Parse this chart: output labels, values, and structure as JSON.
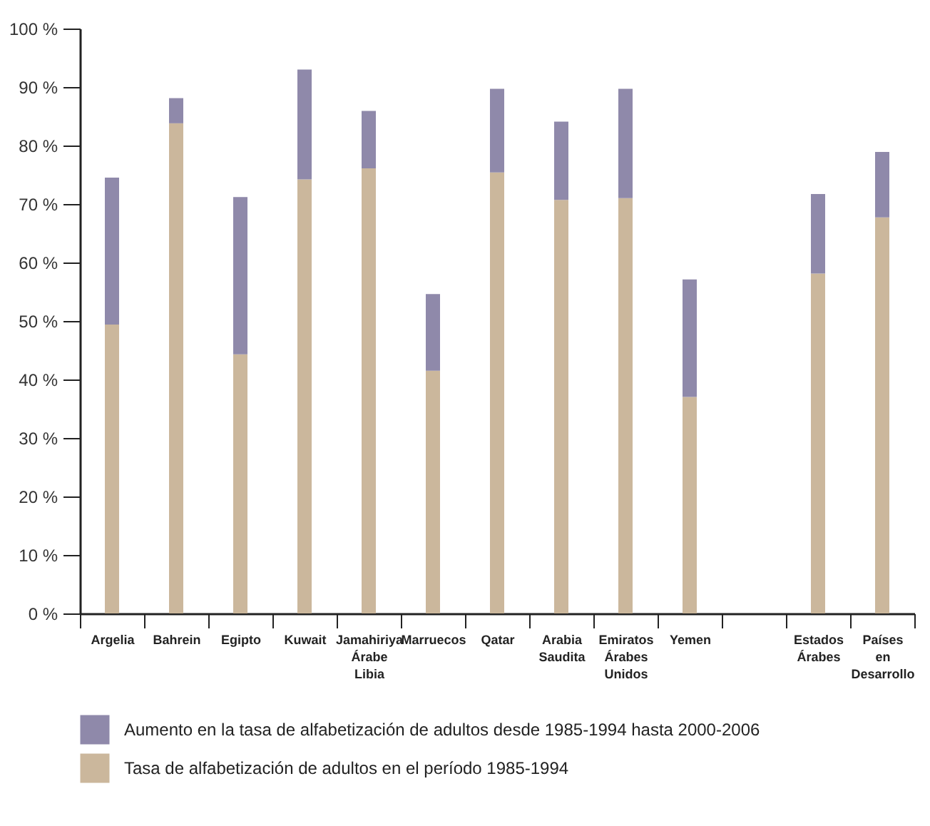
{
  "chart_data": {
    "type": "bar",
    "stacked": true,
    "categories": [
      "Argelia",
      "Bahrein",
      "Egipto",
      "Kuwait",
      "Jamahiriya Árabe Libia",
      "Marruecos",
      "Qatar",
      "Arabia Saudita",
      "Emiratos Árabes Unidos",
      "Yemen",
      null,
      "Estados Árabes",
      "Países en Desarrollo"
    ],
    "series": [
      {
        "name": "Tasa de alfabetización de adultos en el período 1985-1994",
        "color": "#cbb79c",
        "values": [
          49.4,
          83.8,
          44.3,
          74.2,
          76.1,
          41.5,
          75.4,
          70.7,
          71.0,
          37.0,
          null,
          58.1,
          67.7
        ]
      },
      {
        "name": "Aumento en la tasa de alfabetización de adultos desde 1985-1994 hasta 2000-2006",
        "color": "#8f89aa",
        "values": [
          25.1,
          4.3,
          26.9,
          18.8,
          9.8,
          13.1,
          14.3,
          13.4,
          18.7,
          20.1,
          null,
          13.6,
          11.2
        ]
      }
    ],
    "ylim": [
      0,
      100
    ],
    "yticks": [
      {
        "value": 0,
        "label": "0 %"
      },
      {
        "value": 10,
        "label": "10 %"
      },
      {
        "value": 20,
        "label": "20 %"
      },
      {
        "value": 30,
        "label": "30 %"
      },
      {
        "value": 40,
        "label": "40 %"
      },
      {
        "value": 50,
        "label": "50 %"
      },
      {
        "value": 60,
        "label": "60 %"
      },
      {
        "value": 70,
        "label": "70 %"
      },
      {
        "value": 80,
        "label": "80 %"
      },
      {
        "value": 90,
        "label": "90 %"
      },
      {
        "value": 100,
        "label": "100 %"
      }
    ],
    "grid": false,
    "legend": "bottom"
  }
}
